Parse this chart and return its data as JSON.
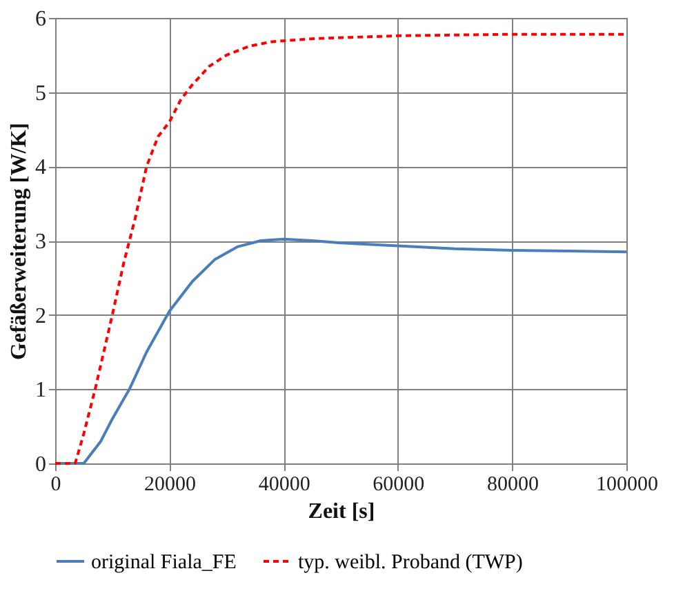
{
  "chart_data": {
    "type": "line",
    "xlabel": "Zeit [s]",
    "ylabel": "Gefäßerweiterung  [W/K]",
    "xlim": [
      0,
      100000
    ],
    "xticks": [
      0,
      20000,
      40000,
      60000,
      80000,
      100000
    ],
    "ylim": [
      0,
      6
    ],
    "yticks": [
      0,
      1,
      2,
      3,
      4,
      5,
      6
    ],
    "grid": true,
    "legend": "bottom",
    "marker": "none",
    "series": [
      {
        "name": "original Fiala_FE",
        "color": "#4a7ebb",
        "line_style": "solid",
        "x": [
          0,
          5000,
          8000,
          10000,
          13000,
          16000,
          20000,
          24000,
          28000,
          32000,
          36000,
          40000,
          45000,
          50000,
          60000,
          70000,
          80000,
          90000,
          100000
        ],
        "values": [
          0,
          0,
          0.3,
          0.6,
          1.0,
          1.5,
          2.05,
          2.45,
          2.75,
          2.92,
          3.0,
          3.02,
          3.0,
          2.97,
          2.93,
          2.89,
          2.87,
          2.86,
          2.85
        ]
      },
      {
        "name": "typ. weibl. Proband (TWP)",
        "color": "#ff0000",
        "line_style": "dashed",
        "x": [
          0,
          3500,
          5000,
          7000,
          10000,
          12000,
          14000,
          16000,
          18000,
          20000,
          22000,
          24000,
          27000,
          30000,
          34000,
          38000,
          45000,
          60000,
          80000,
          100000
        ],
        "values": [
          0,
          0,
          0.4,
          1.0,
          2.0,
          2.7,
          3.3,
          4.0,
          4.4,
          4.6,
          4.9,
          5.1,
          5.35,
          5.5,
          5.62,
          5.68,
          5.72,
          5.76,
          5.78,
          5.78
        ]
      }
    ]
  }
}
